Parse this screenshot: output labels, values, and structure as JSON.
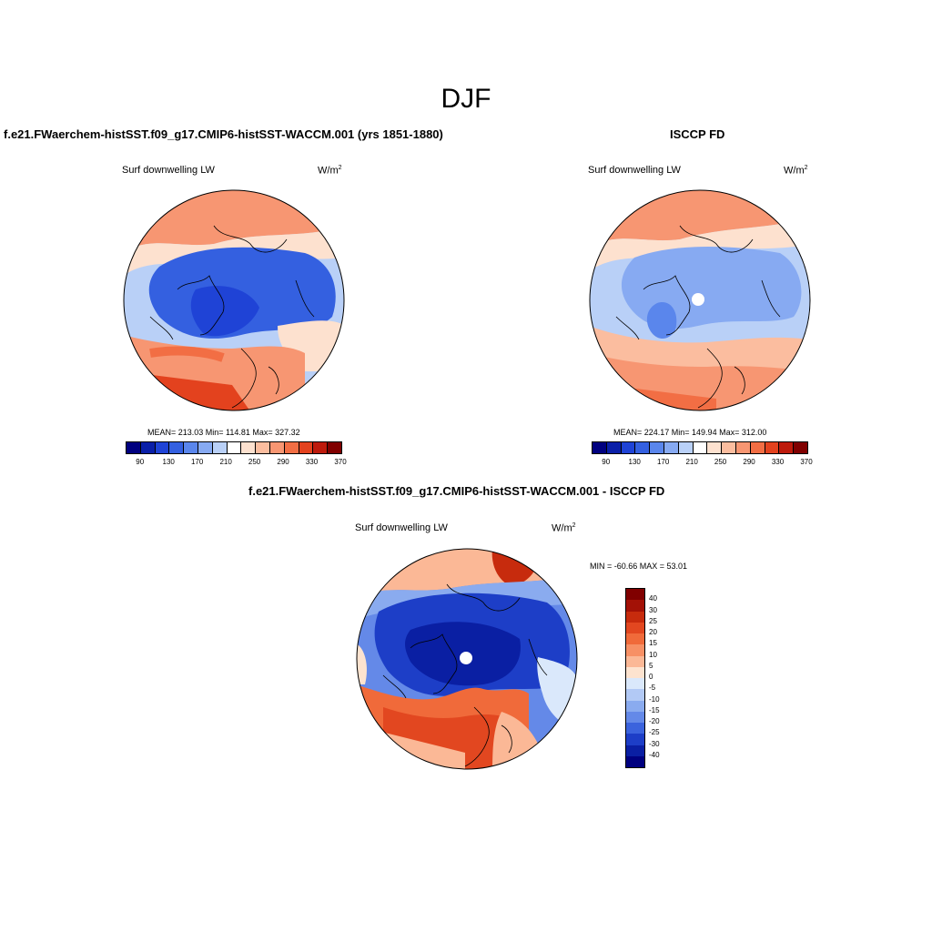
{
  "main_title": "DJF",
  "panels": [
    {
      "title": "f.e21.FWaerchem-histSST.f09_g17.CMIP6-histSST-WACCM.001 (yrs 1851-1880)",
      "variable": "Surf downwelling LW",
      "units_base": "W/m",
      "units_sup": "2",
      "stats": "MEAN= 213.03  Min= 114.81  Max= 327.32"
    },
    {
      "title": "ISCCP FD",
      "variable": "Surf downwelling LW",
      "units_base": "W/m",
      "units_sup": "2",
      "stats": "MEAN= 224.17  Min= 149.94  Max= 312.00"
    },
    {
      "title": "f.e21.FWaerchem-histSST.f09_g17.CMIP6-histSST-WACCM.001 - ISCCP FD",
      "variable": "Surf downwelling LW",
      "units_base": "W/m",
      "units_sup": "2",
      "stats": "MIN = -60.66 MAX =  53.01"
    }
  ],
  "colorbar_abs": {
    "colors": [
      "#00007f",
      "#0a1fa8",
      "#1f43d6",
      "#3460e0",
      "#5a86ec",
      "#87aaf2",
      "#b9d0f7",
      "#ffffff",
      "#fde1cf",
      "#fbbd9f",
      "#f79672",
      "#f26e44",
      "#e3421e",
      "#bd1a0c",
      "#800000"
    ],
    "ticks": [
      "90",
      "130",
      "170",
      "210",
      "250",
      "290",
      "330",
      "370"
    ]
  },
  "colorbar_diff": {
    "colors": [
      "#800000",
      "#a31106",
      "#c72b0d",
      "#e24720",
      "#f06a3a",
      "#f79065",
      "#fbb896",
      "#fde3cf",
      "#dae8fb",
      "#b2c9f5",
      "#8aabef",
      "#6489e8",
      "#3b63dd",
      "#1d3ec7",
      "#0a1fa3",
      "#00007f"
    ],
    "ticks": [
      "40",
      "30",
      "25",
      "20",
      "15",
      "10",
      "5",
      "0",
      "-5",
      "-10",
      "-15",
      "-20",
      "-25",
      "-30",
      "-40"
    ]
  },
  "chart_data": [
    {
      "type": "heatmap",
      "title": "f.e21.FWaerchem-histSST.f09_g17.CMIP6-histSST-WACCM.001 (yrs 1851-1880)",
      "variable": "Surf downwelling LW",
      "units": "W/m2",
      "projection": "north polar stereographic",
      "mean": 213.03,
      "min": 114.81,
      "max": 327.32,
      "levels": [
        90,
        110,
        130,
        150,
        170,
        190,
        210,
        230,
        250,
        270,
        290,
        310,
        330,
        350,
        370
      ],
      "colorbar_tick_labels": [
        90,
        130,
        170,
        210,
        250,
        290,
        330,
        370
      ]
    },
    {
      "type": "heatmap",
      "title": "ISCCP FD",
      "variable": "Surf downwelling LW",
      "units": "W/m2",
      "projection": "north polar stereographic",
      "mean": 224.17,
      "min": 149.94,
      "max": 312.0,
      "levels": [
        90,
        110,
        130,
        150,
        170,
        190,
        210,
        230,
        250,
        270,
        290,
        310,
        330,
        350,
        370
      ],
      "colorbar_tick_labels": [
        90,
        130,
        170,
        210,
        250,
        290,
        330,
        370
      ]
    },
    {
      "type": "heatmap",
      "title": "f.e21.FWaerchem-histSST.f09_g17.CMIP6-histSST-WACCM.001 - ISCCP FD",
      "variable": "Surf downwelling LW",
      "units": "W/m2",
      "projection": "north polar stereographic",
      "min": -60.66,
      "max": 53.01,
      "colorbar_tick_labels": [
        40,
        30,
        25,
        20,
        15,
        10,
        5,
        0,
        -5,
        -10,
        -15,
        -20,
        -25,
        -30,
        -40
      ]
    }
  ]
}
